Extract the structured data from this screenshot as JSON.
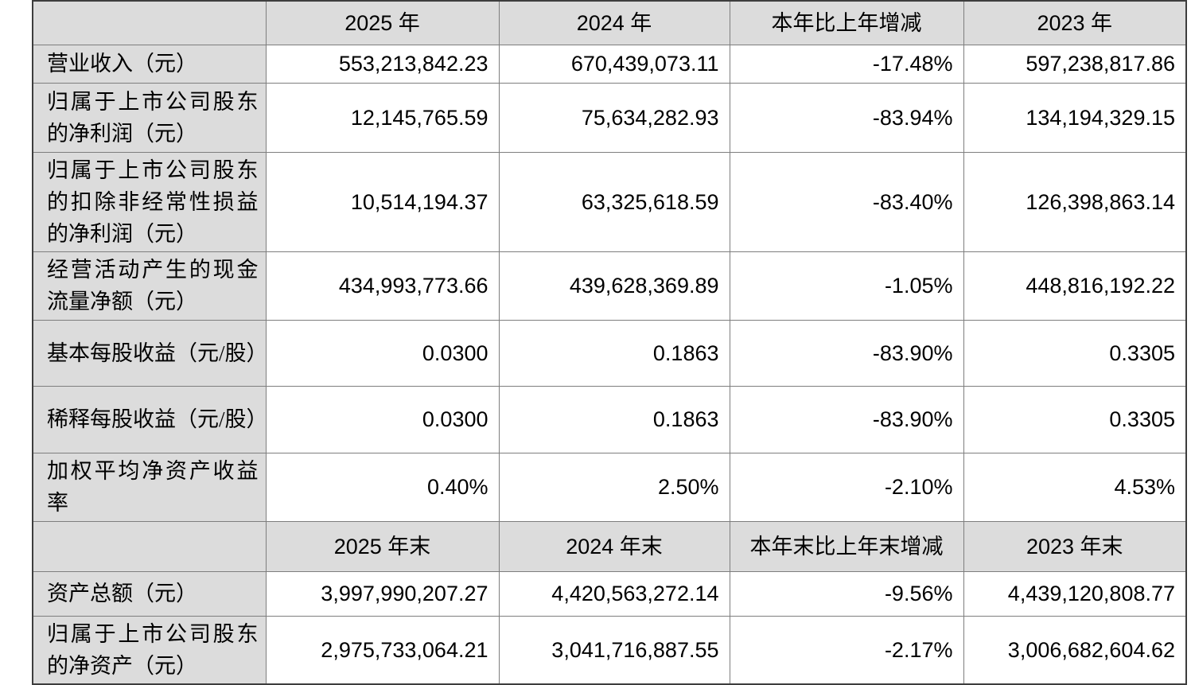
{
  "colors": {
    "header_bg": "#dcdcdc",
    "label_bg": "#dcdcdc",
    "cell_bg": "#ffffff",
    "border_inner": "#7e7e7e",
    "border_outer": "#3d3d3d",
    "text": "#000000"
  },
  "table": {
    "header_row_1": {
      "col0": "",
      "col1": "2025 年",
      "col2": "2024 年",
      "col3": "本年比上年增减",
      "col4": "2023 年"
    },
    "section1_rows": [
      {
        "label": "营业收入（元）",
        "y2025": "553,213,842.23",
        "y2024": "670,439,073.11",
        "change": "-17.48%",
        "y2023": "597,238,817.86"
      },
      {
        "label": "归属于上市公司股东的净利润（元）",
        "y2025": "12,145,765.59",
        "y2024": "75,634,282.93",
        "change": "-83.94%",
        "y2023": "134,194,329.15"
      },
      {
        "label": "归属于上市公司股东的扣除非经常性损益的净利润（元）",
        "y2025": "10,514,194.37",
        "y2024": "63,325,618.59",
        "change": "-83.40%",
        "y2023": "126,398,863.14"
      },
      {
        "label": "经营活动产生的现金流量净额（元）",
        "y2025": "434,993,773.66",
        "y2024": "439,628,369.89",
        "change": "-1.05%",
        "y2023": "448,816,192.22"
      },
      {
        "label": "基本每股收益（元/股）",
        "y2025": "0.0300",
        "y2024": "0.1863",
        "change": "-83.90%",
        "y2023": "0.3305"
      },
      {
        "label": "稀释每股收益（元/股）",
        "y2025": "0.0300",
        "y2024": "0.1863",
        "change": "-83.90%",
        "y2023": "0.3305"
      },
      {
        "label": "加权平均净资产收益率",
        "y2025": "0.40%",
        "y2024": "2.50%",
        "change": "-2.10%",
        "y2023": "4.53%"
      }
    ],
    "header_row_2": {
      "col0": "",
      "col1": "2025 年末",
      "col2": "2024 年末",
      "col3": "本年末比上年末增减",
      "col4": "2023 年末"
    },
    "section2_rows": [
      {
        "label": "资产总额（元）",
        "y2025": "3,997,990,207.27",
        "y2024": "4,420,563,272.14",
        "change": "-9.56%",
        "y2023": "4,439,120,808.77"
      },
      {
        "label": "归属于上市公司股东的净资产（元）",
        "y2025": "2,975,733,064.21",
        "y2024": "3,041,716,887.55",
        "change": "-2.17%",
        "y2023": "3,006,682,604.62"
      }
    ]
  }
}
